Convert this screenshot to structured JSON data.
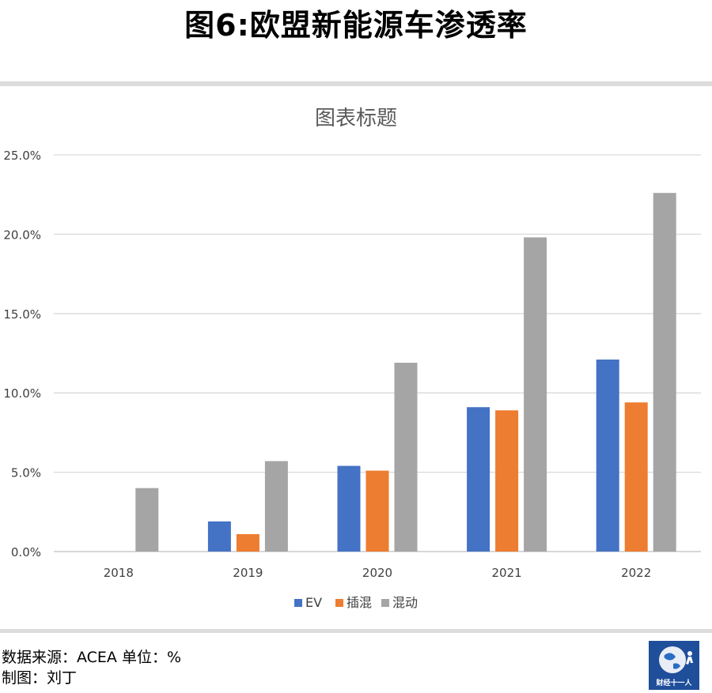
{
  "page_title": "图6:欧盟新能源车渗透率",
  "footer": {
    "source": "数据来源：ACEA 单位：%",
    "maker": "制图：刘丁"
  },
  "logo": {
    "text": "财经十一人",
    "icon": "globe-logo-icon"
  },
  "colors": {
    "EV": "#4472c4",
    "插混": "#ed7d31",
    "混动": "#a5a5a5"
  },
  "chart_data": {
    "type": "bar",
    "title": "图表标题",
    "xlabel": "",
    "ylabel": "",
    "categories": [
      "2018",
      "2019",
      "2020",
      "2021",
      "2022"
    ],
    "series": [
      {
        "name": "EV",
        "values": [
          0,
          1.9,
          5.4,
          9.1,
          12.1
        ]
      },
      {
        "name": "插混",
        "values": [
          0,
          1.1,
          5.1,
          8.9,
          9.4
        ]
      },
      {
        "name": "混动",
        "values": [
          4.0,
          5.7,
          11.9,
          19.8,
          22.6
        ]
      }
    ],
    "ylim": [
      0,
      25
    ],
    "yticks": [
      "0.0%",
      "5.0%",
      "10.0%",
      "15.0%",
      "20.0%",
      "25.0%"
    ],
    "grid": true,
    "legend": "bottom"
  }
}
